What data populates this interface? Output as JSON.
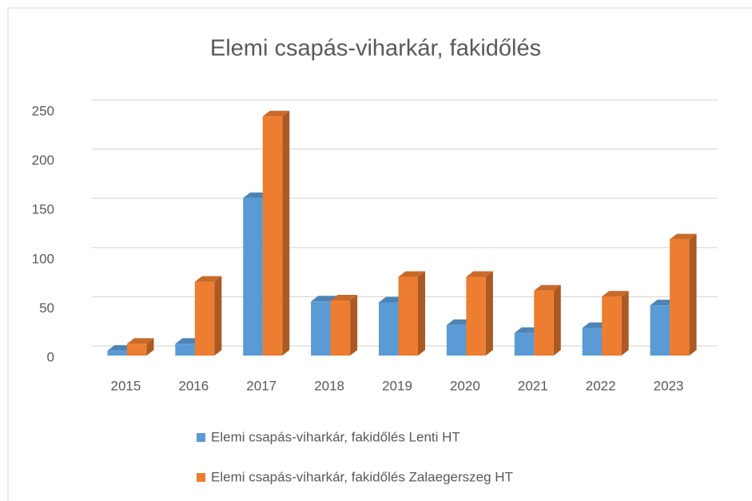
{
  "chart_data": {
    "type": "bar3d",
    "title": "Elemi csapás-viharkár, fakidőlés",
    "categories": [
      "2015",
      "2016",
      "2017",
      "2018",
      "2019",
      "2020",
      "2021",
      "2022",
      "2023"
    ],
    "series": [
      {
        "name": "Elemi csapás-viharkár, fakidőlés Lenti HT",
        "color": "#5b9bd5",
        "values": [
          5,
          12,
          160,
          55,
          54,
          31,
          23,
          28,
          51
        ]
      },
      {
        "name": "Elemi csapás-viharkár, fakidőlés Zalaegerszeg HT",
        "color": "#ed7d31",
        "values": [
          12,
          75,
          243,
          56,
          80,
          80,
          66,
          60,
          118
        ]
      }
    ],
    "ylim": [
      0,
      250
    ],
    "yticks": [
      0,
      50,
      100,
      150,
      200,
      250
    ],
    "grid": true,
    "legend": "bottom"
  }
}
